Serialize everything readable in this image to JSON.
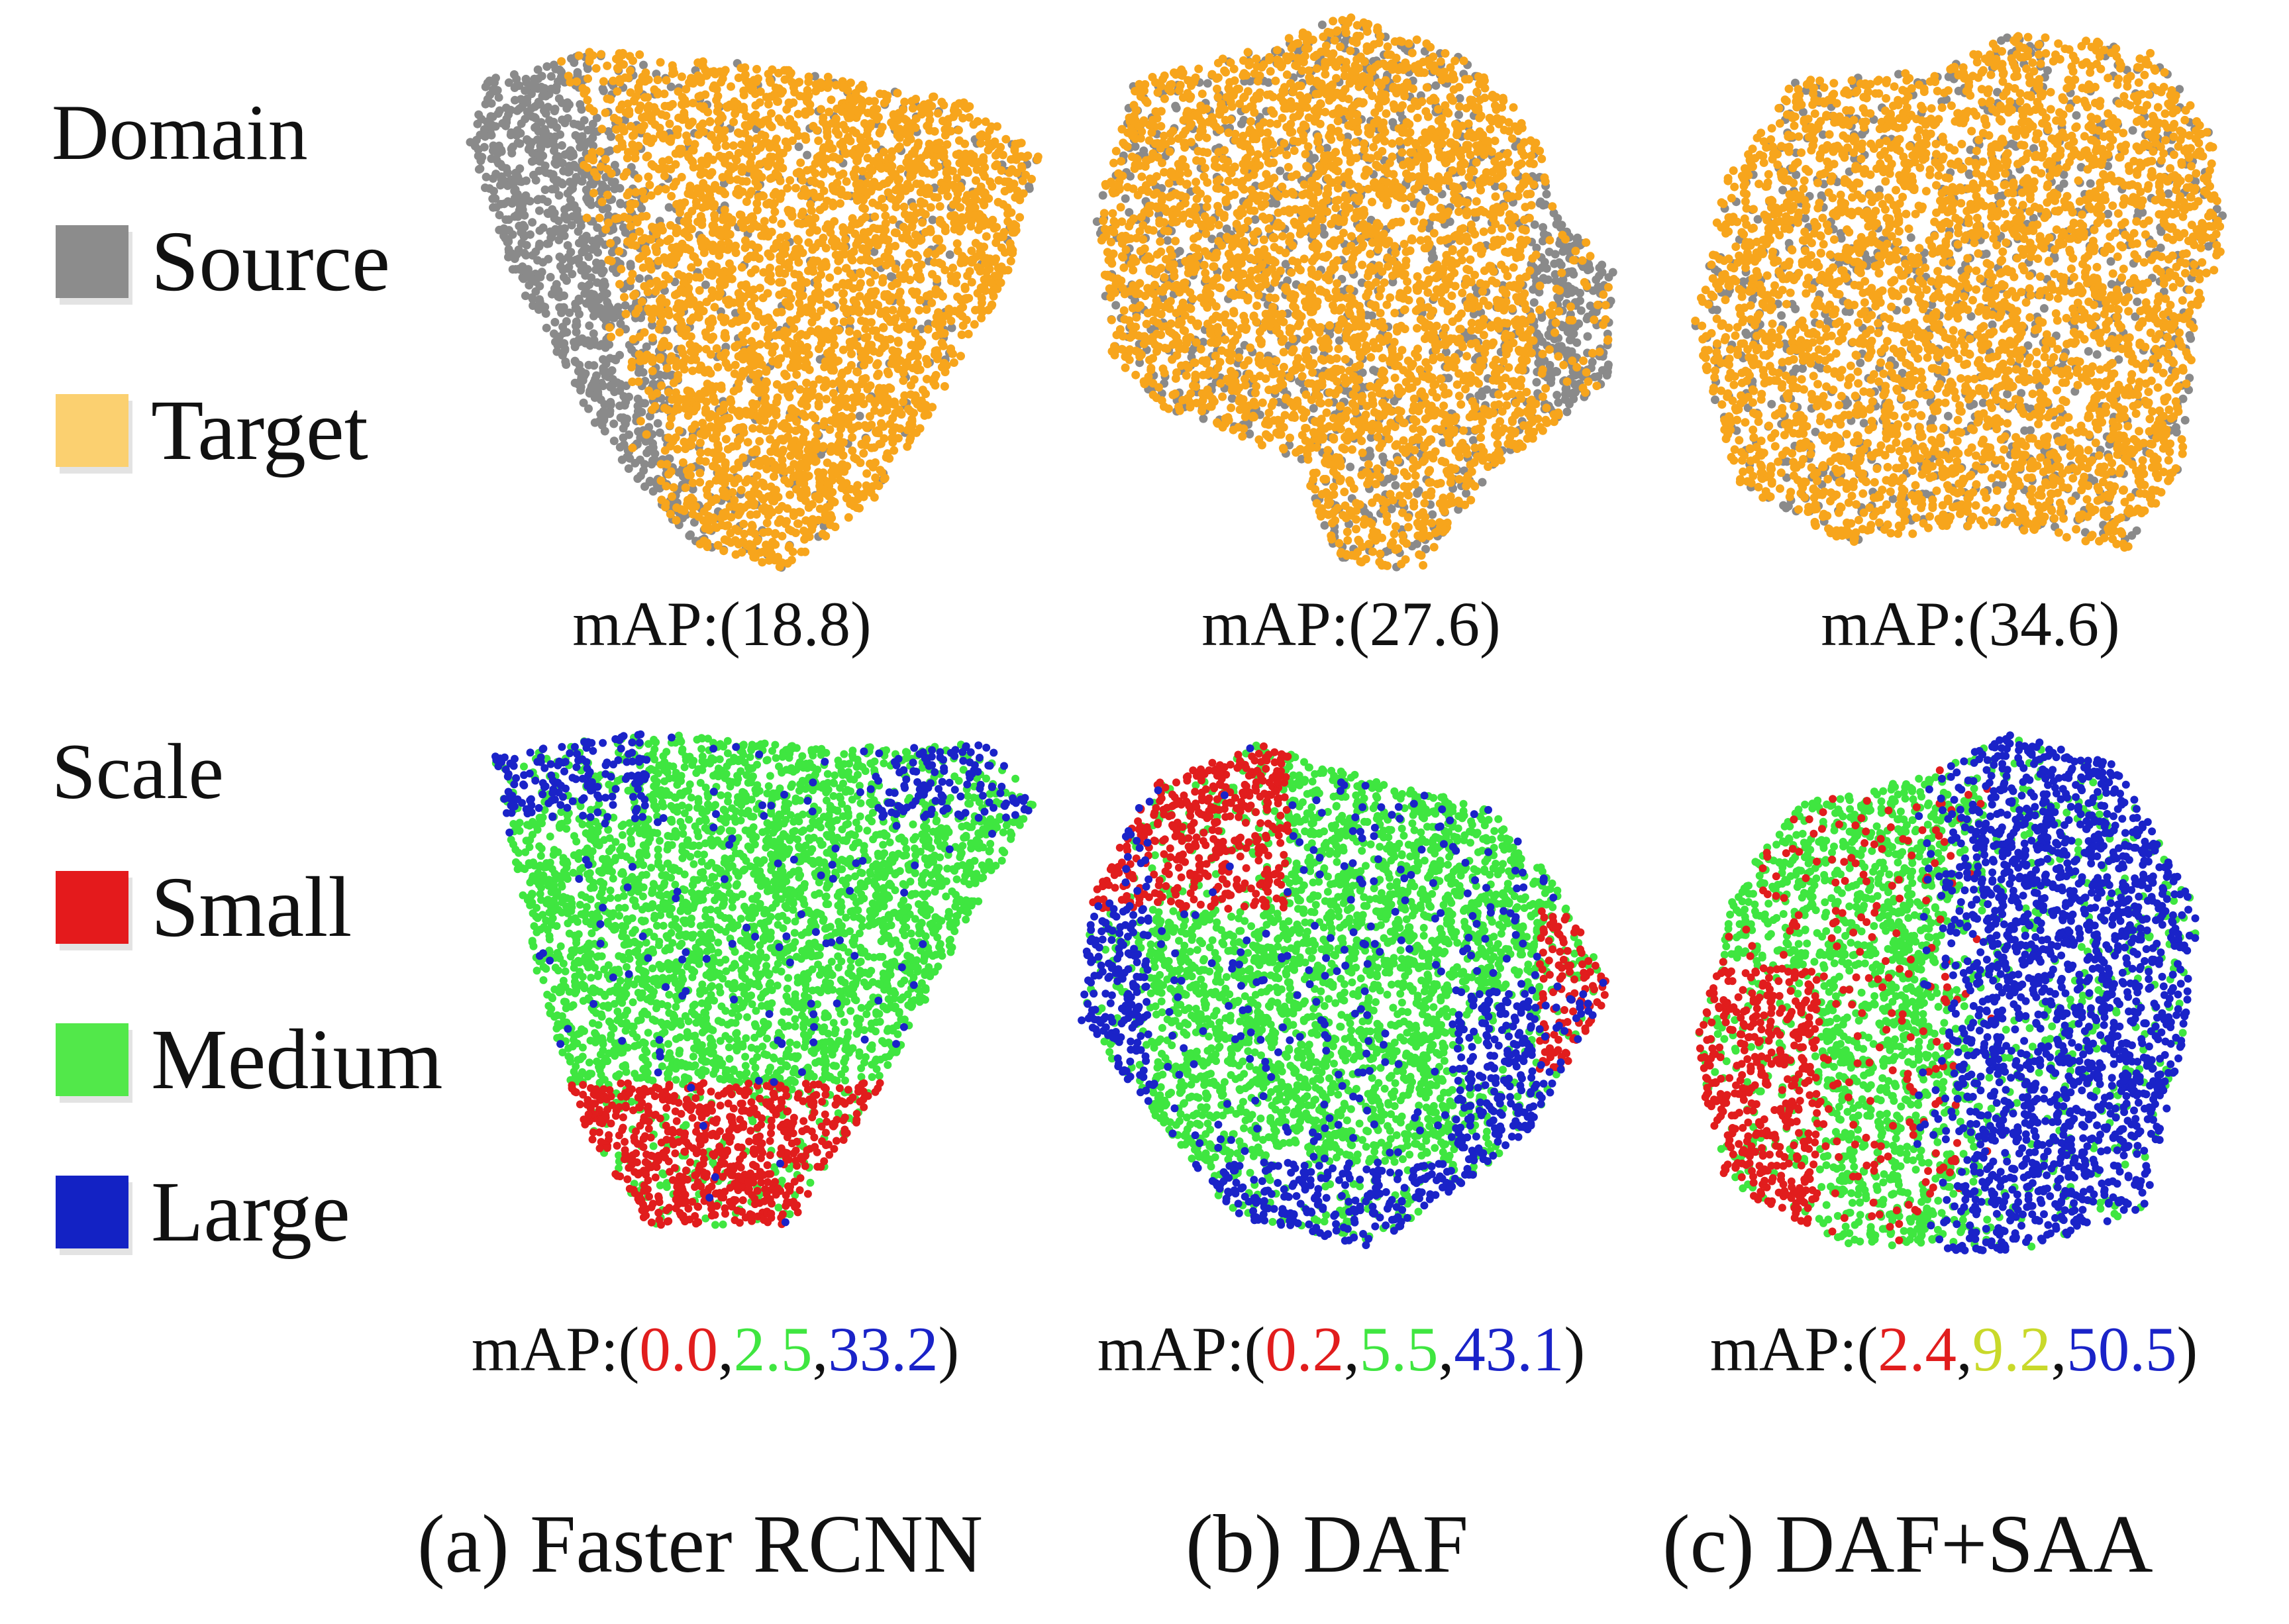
{
  "legends": {
    "domain": {
      "title": "Domain",
      "items": [
        {
          "label": "Source",
          "color": "#8c8c8c"
        },
        {
          "label": "Target",
          "color": "#fbd070"
        }
      ]
    },
    "scale": {
      "title": "Scale",
      "items": [
        {
          "label": "Small",
          "color": "#e41a1c"
        },
        {
          "label": "Medium",
          "color": "#52e84a"
        },
        {
          "label": "Large",
          "color": "#1322c4"
        }
      ]
    }
  },
  "colors": {
    "source": "#8a8a8a",
    "target": "#f7a51c",
    "small": "#e11d1d",
    "medium": "#3fe640",
    "large": "#1a23c8"
  },
  "domain_map": [
    {
      "prefix": "mAP:(",
      "value": "18.8",
      "suffix": ")"
    },
    {
      "prefix": "mAP:(",
      "value": "27.6",
      "suffix": ")"
    },
    {
      "prefix": "mAP:(",
      "value": "34.6",
      "suffix": ")"
    }
  ],
  "scale_map": [
    {
      "prefix": "mAP:(",
      "small": "0.0",
      "medium": "2.5",
      "large": "33.2",
      "suffix": ")"
    },
    {
      "prefix": "mAP:(",
      "small": "0.2",
      "medium": "5.5",
      "large": "43.1",
      "suffix": ")"
    },
    {
      "prefix": "mAP:(",
      "small": "2.4",
      "medium": "9.2",
      "large": "50.5",
      "suffix": ")"
    }
  ],
  "methods": [
    "(a) Faster RCNN",
    "(b) DAF",
    "(c) DAF+SAA"
  ],
  "chart_data": {
    "type": "scatter",
    "panels": [
      {
        "row": "domain",
        "method": "(a) Faster RCNN",
        "series": [
          "Source",
          "Target"
        ],
        "map": [
          18.8
        ]
      },
      {
        "row": "domain",
        "method": "(b) DAF",
        "series": [
          "Source",
          "Target"
        ],
        "map": [
          27.6
        ]
      },
      {
        "row": "domain",
        "method": "(c) DAF+SAA",
        "series": [
          "Source",
          "Target"
        ],
        "map": [
          34.6
        ]
      },
      {
        "row": "scale",
        "method": "(a) Faster RCNN",
        "series": [
          "Small",
          "Medium",
          "Large"
        ],
        "map": [
          0.0,
          2.5,
          33.2
        ]
      },
      {
        "row": "scale",
        "method": "(b) DAF",
        "series": [
          "Small",
          "Medium",
          "Large"
        ],
        "map": [
          0.2,
          5.5,
          43.1
        ]
      },
      {
        "row": "scale",
        "method": "(c) DAF+SAA",
        "series": [
          "Small",
          "Medium",
          "Large"
        ],
        "map": [
          2.4,
          9.2,
          50.5
        ]
      }
    ]
  }
}
